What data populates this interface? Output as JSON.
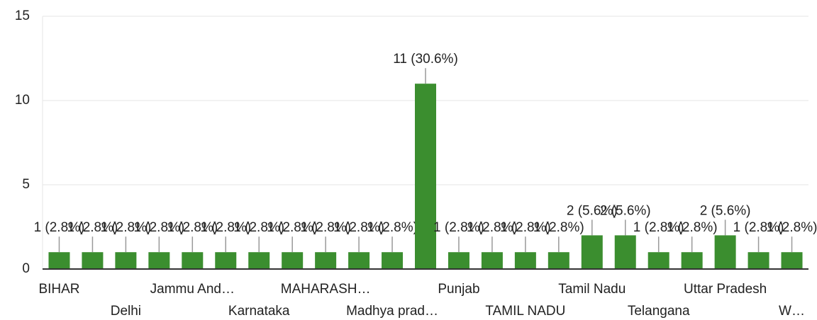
{
  "chart_data": {
    "type": "bar",
    "categories": [
      "BIHAR",
      null,
      "Delhi",
      null,
      "Jammu And…",
      null,
      "Karnataka",
      null,
      "MAHARASH…",
      null,
      "Madhya prad…",
      null,
      "Punjab",
      null,
      "TAMIL NADU",
      null,
      "Tamil Nadu",
      null,
      "Telangana",
      null,
      "Uttar Pradesh",
      null,
      "W…"
    ],
    "values": [
      1,
      1,
      1,
      1,
      1,
      1,
      1,
      1,
      1,
      1,
      1,
      11,
      1,
      1,
      1,
      1,
      2,
      2,
      1,
      1,
      2,
      1,
      1
    ],
    "value_labels": [
      "1 (2.8%)",
      "1 (2.8%)",
      "1 (2.8%)",
      "1 (2.8%)",
      "1 (2.8%)",
      "1 (2.8%)",
      "1 (2.8%)",
      "1 (2.8%)",
      "1 (2.8%)",
      "1 (2.8%)",
      "1 (2.8%)",
      "11 (30.6%)",
      "1 (2.8%)",
      "1 (2.8%)",
      "1 (2.8%)",
      "1 (2.8%)",
      "2 (5.6%)",
      "2 (5.6%)",
      "1 (2.8%)",
      "1 (2.8%)",
      "2 (5.6%)",
      "1 (2.8%)",
      "1 (2.8%)"
    ],
    "color": "#3b8e2f",
    "ylim": [
      0,
      15
    ],
    "yticks": [
      0,
      5,
      10,
      15
    ],
    "grid": true
  }
}
